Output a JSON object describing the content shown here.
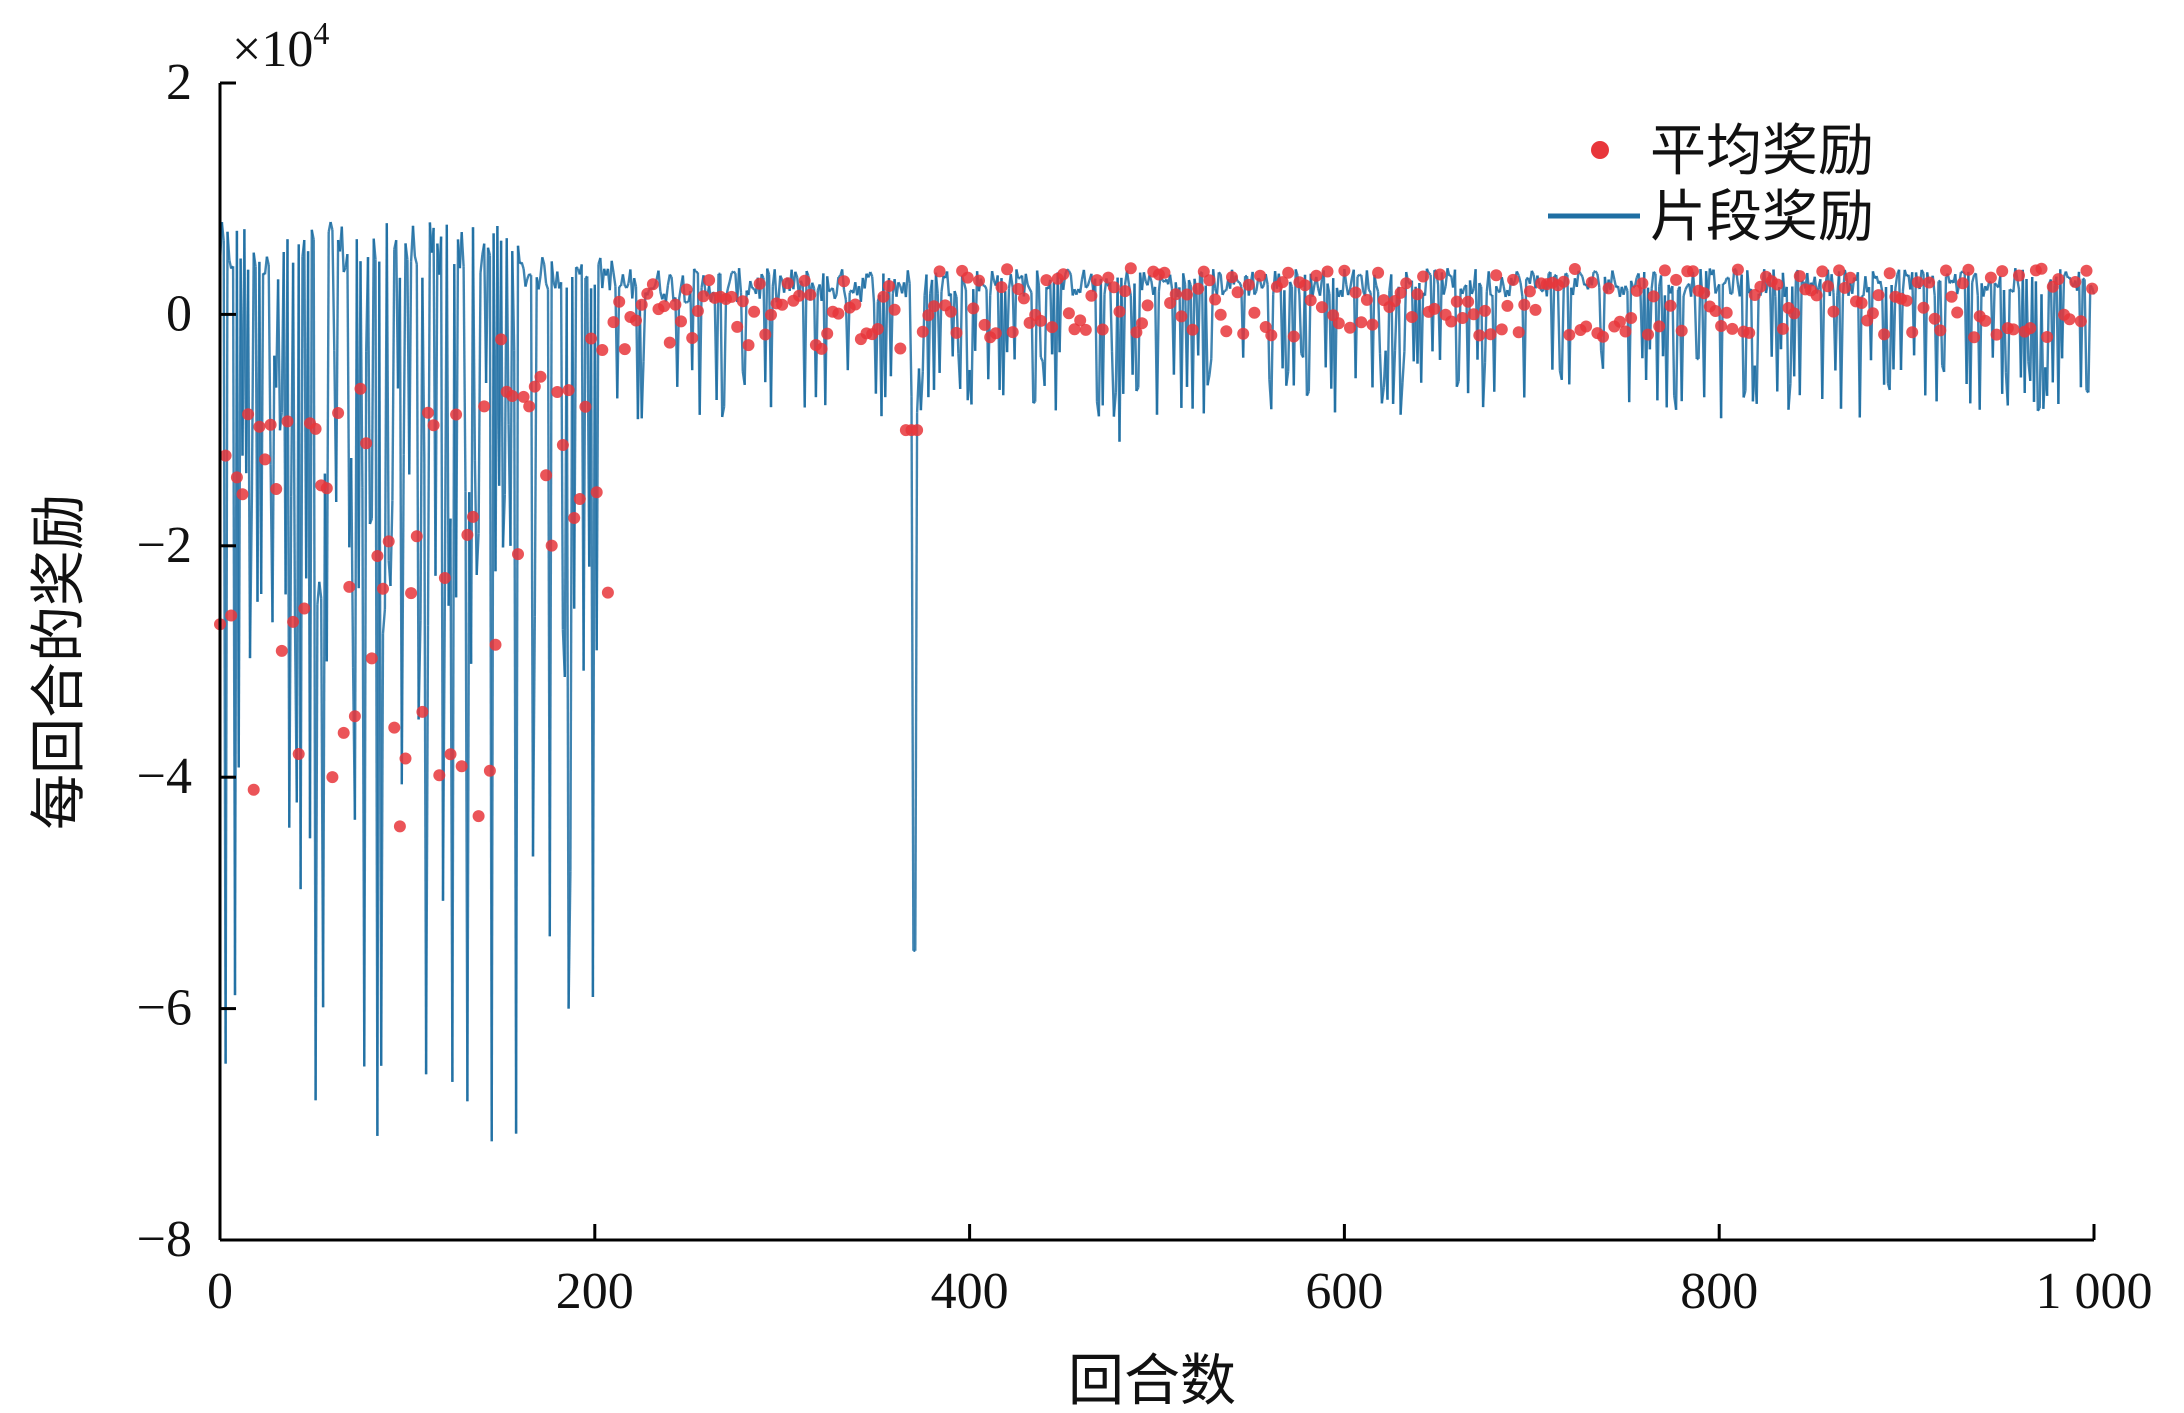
{
  "chart_data": {
    "type": "line",
    "x_axis_title": "回合数",
    "y_axis_title": "每回合的奖励",
    "y_exponent_label": "×10",
    "y_exponent_sup": "4",
    "xlim": [
      0,
      1000
    ],
    "ylim": [
      -8,
      2
    ],
    "x_ticks": [
      0,
      200,
      400,
      600,
      800,
      1000
    ],
    "x_tick_labels": [
      "0",
      "200",
      "400",
      "600",
      "800",
      "1 000"
    ],
    "y_ticks": [
      -8,
      -6,
      -4,
      -2,
      0,
      2
    ],
    "y_tick_labels": [
      "−8",
      "−6",
      "−4",
      "−2",
      "0",
      "2"
    ],
    "legend_position": "top-right",
    "grid": false,
    "series": [
      {
        "name": "平均奖励",
        "mark": "star-points",
        "color": "#e8363b"
      },
      {
        "name": "片段奖励",
        "mark": "line",
        "color": "#1f6fa3"
      }
    ]
  }
}
